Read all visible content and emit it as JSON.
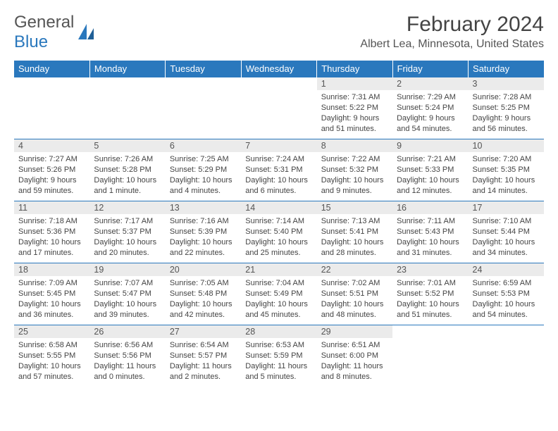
{
  "brand": {
    "part1": "General",
    "part2": "Blue"
  },
  "title": "February 2024",
  "location": "Albert Lea, Minnesota, United States",
  "colors": {
    "header_bg": "#2a78bd",
    "header_text": "#ffffff",
    "daynum_bg": "#ebebeb",
    "cell_border": "#2a78bd",
    "body_text": "#444444"
  },
  "weekdays": [
    "Sunday",
    "Monday",
    "Tuesday",
    "Wednesday",
    "Thursday",
    "Friday",
    "Saturday"
  ],
  "weeks": [
    [
      {
        "n": "",
        "sr": "",
        "ss": "",
        "d1": "",
        "d2": ""
      },
      {
        "n": "",
        "sr": "",
        "ss": "",
        "d1": "",
        "d2": ""
      },
      {
        "n": "",
        "sr": "",
        "ss": "",
        "d1": "",
        "d2": ""
      },
      {
        "n": "",
        "sr": "",
        "ss": "",
        "d1": "",
        "d2": ""
      },
      {
        "n": "1",
        "sr": "Sunrise: 7:31 AM",
        "ss": "Sunset: 5:22 PM",
        "d1": "Daylight: 9 hours",
        "d2": "and 51 minutes."
      },
      {
        "n": "2",
        "sr": "Sunrise: 7:29 AM",
        "ss": "Sunset: 5:24 PM",
        "d1": "Daylight: 9 hours",
        "d2": "and 54 minutes."
      },
      {
        "n": "3",
        "sr": "Sunrise: 7:28 AM",
        "ss": "Sunset: 5:25 PM",
        "d1": "Daylight: 9 hours",
        "d2": "and 56 minutes."
      }
    ],
    [
      {
        "n": "4",
        "sr": "Sunrise: 7:27 AM",
        "ss": "Sunset: 5:26 PM",
        "d1": "Daylight: 9 hours",
        "d2": "and 59 minutes."
      },
      {
        "n": "5",
        "sr": "Sunrise: 7:26 AM",
        "ss": "Sunset: 5:28 PM",
        "d1": "Daylight: 10 hours",
        "d2": "and 1 minute."
      },
      {
        "n": "6",
        "sr": "Sunrise: 7:25 AM",
        "ss": "Sunset: 5:29 PM",
        "d1": "Daylight: 10 hours",
        "d2": "and 4 minutes."
      },
      {
        "n": "7",
        "sr": "Sunrise: 7:24 AM",
        "ss": "Sunset: 5:31 PM",
        "d1": "Daylight: 10 hours",
        "d2": "and 6 minutes."
      },
      {
        "n": "8",
        "sr": "Sunrise: 7:22 AM",
        "ss": "Sunset: 5:32 PM",
        "d1": "Daylight: 10 hours",
        "d2": "and 9 minutes."
      },
      {
        "n": "9",
        "sr": "Sunrise: 7:21 AM",
        "ss": "Sunset: 5:33 PM",
        "d1": "Daylight: 10 hours",
        "d2": "and 12 minutes."
      },
      {
        "n": "10",
        "sr": "Sunrise: 7:20 AM",
        "ss": "Sunset: 5:35 PM",
        "d1": "Daylight: 10 hours",
        "d2": "and 14 minutes."
      }
    ],
    [
      {
        "n": "11",
        "sr": "Sunrise: 7:18 AM",
        "ss": "Sunset: 5:36 PM",
        "d1": "Daylight: 10 hours",
        "d2": "and 17 minutes."
      },
      {
        "n": "12",
        "sr": "Sunrise: 7:17 AM",
        "ss": "Sunset: 5:37 PM",
        "d1": "Daylight: 10 hours",
        "d2": "and 20 minutes."
      },
      {
        "n": "13",
        "sr": "Sunrise: 7:16 AM",
        "ss": "Sunset: 5:39 PM",
        "d1": "Daylight: 10 hours",
        "d2": "and 22 minutes."
      },
      {
        "n": "14",
        "sr": "Sunrise: 7:14 AM",
        "ss": "Sunset: 5:40 PM",
        "d1": "Daylight: 10 hours",
        "d2": "and 25 minutes."
      },
      {
        "n": "15",
        "sr": "Sunrise: 7:13 AM",
        "ss": "Sunset: 5:41 PM",
        "d1": "Daylight: 10 hours",
        "d2": "and 28 minutes."
      },
      {
        "n": "16",
        "sr": "Sunrise: 7:11 AM",
        "ss": "Sunset: 5:43 PM",
        "d1": "Daylight: 10 hours",
        "d2": "and 31 minutes."
      },
      {
        "n": "17",
        "sr": "Sunrise: 7:10 AM",
        "ss": "Sunset: 5:44 PM",
        "d1": "Daylight: 10 hours",
        "d2": "and 34 minutes."
      }
    ],
    [
      {
        "n": "18",
        "sr": "Sunrise: 7:09 AM",
        "ss": "Sunset: 5:45 PM",
        "d1": "Daylight: 10 hours",
        "d2": "and 36 minutes."
      },
      {
        "n": "19",
        "sr": "Sunrise: 7:07 AM",
        "ss": "Sunset: 5:47 PM",
        "d1": "Daylight: 10 hours",
        "d2": "and 39 minutes."
      },
      {
        "n": "20",
        "sr": "Sunrise: 7:05 AM",
        "ss": "Sunset: 5:48 PM",
        "d1": "Daylight: 10 hours",
        "d2": "and 42 minutes."
      },
      {
        "n": "21",
        "sr": "Sunrise: 7:04 AM",
        "ss": "Sunset: 5:49 PM",
        "d1": "Daylight: 10 hours",
        "d2": "and 45 minutes."
      },
      {
        "n": "22",
        "sr": "Sunrise: 7:02 AM",
        "ss": "Sunset: 5:51 PM",
        "d1": "Daylight: 10 hours",
        "d2": "and 48 minutes."
      },
      {
        "n": "23",
        "sr": "Sunrise: 7:01 AM",
        "ss": "Sunset: 5:52 PM",
        "d1": "Daylight: 10 hours",
        "d2": "and 51 minutes."
      },
      {
        "n": "24",
        "sr": "Sunrise: 6:59 AM",
        "ss": "Sunset: 5:53 PM",
        "d1": "Daylight: 10 hours",
        "d2": "and 54 minutes."
      }
    ],
    [
      {
        "n": "25",
        "sr": "Sunrise: 6:58 AM",
        "ss": "Sunset: 5:55 PM",
        "d1": "Daylight: 10 hours",
        "d2": "and 57 minutes."
      },
      {
        "n": "26",
        "sr": "Sunrise: 6:56 AM",
        "ss": "Sunset: 5:56 PM",
        "d1": "Daylight: 11 hours",
        "d2": "and 0 minutes."
      },
      {
        "n": "27",
        "sr": "Sunrise: 6:54 AM",
        "ss": "Sunset: 5:57 PM",
        "d1": "Daylight: 11 hours",
        "d2": "and 2 minutes."
      },
      {
        "n": "28",
        "sr": "Sunrise: 6:53 AM",
        "ss": "Sunset: 5:59 PM",
        "d1": "Daylight: 11 hours",
        "d2": "and 5 minutes."
      },
      {
        "n": "29",
        "sr": "Sunrise: 6:51 AM",
        "ss": "Sunset: 6:00 PM",
        "d1": "Daylight: 11 hours",
        "d2": "and 8 minutes."
      },
      {
        "n": "",
        "sr": "",
        "ss": "",
        "d1": "",
        "d2": ""
      },
      {
        "n": "",
        "sr": "",
        "ss": "",
        "d1": "",
        "d2": ""
      }
    ]
  ]
}
